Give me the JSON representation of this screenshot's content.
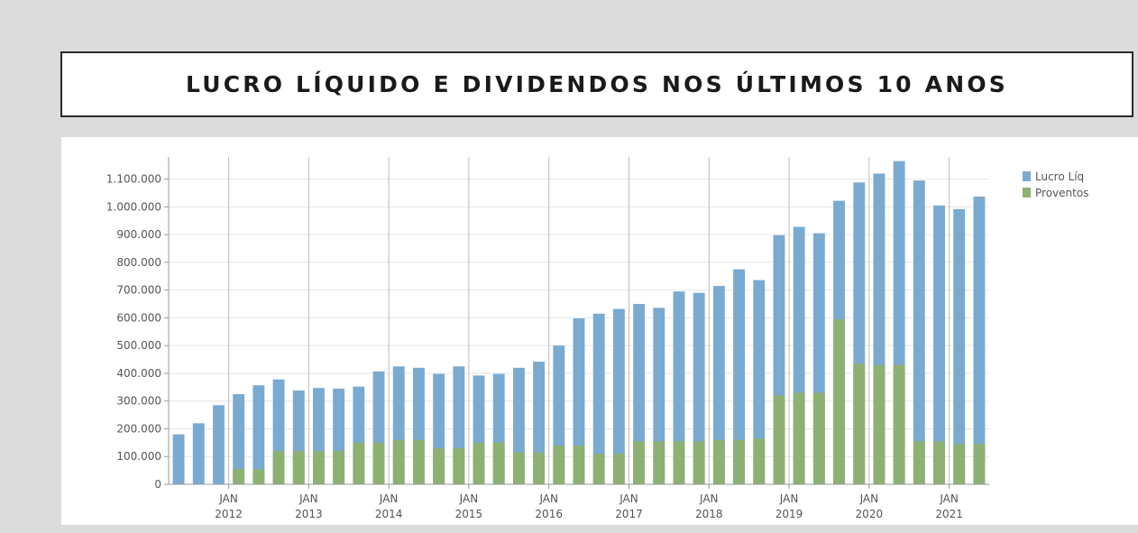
{
  "title": "LUCRO LÍQUIDO E DIVIDENDOS NOS ÚLTIMOS 10 ANOS",
  "chart_data": {
    "type": "bar",
    "xlabel": "",
    "ylabel": "",
    "ylim": [
      0,
      1180000
    ],
    "y_ticks": [
      "0",
      "100.000",
      "200.000",
      "300.000",
      "400.000",
      "500.000",
      "600.000",
      "700.000",
      "800.000",
      "900.000",
      "1.000.000",
      "1.100.000"
    ],
    "y_tick_values": [
      0,
      100000,
      200000,
      300000,
      400000,
      500000,
      600000,
      700000,
      800000,
      900000,
      1000000,
      1100000
    ],
    "x_ticks": [
      {
        "month": "JAN",
        "year": "2012"
      },
      {
        "month": "JAN",
        "year": "2013"
      },
      {
        "month": "JAN",
        "year": "2014"
      },
      {
        "month": "JAN",
        "year": "2015"
      },
      {
        "month": "JAN",
        "year": "2016"
      },
      {
        "month": "JAN",
        "year": "2017"
      },
      {
        "month": "JAN",
        "year": "2018"
      },
      {
        "month": "JAN",
        "year": "2019"
      },
      {
        "month": "JAN",
        "year": "2020"
      },
      {
        "month": "JAN",
        "year": "2021"
      }
    ],
    "grid": true,
    "legend": "right",
    "series": [
      {
        "name": "Lucro Líq",
        "color": "#7aaad0",
        "values": [
          180000,
          220000,
          285000,
          325000,
          357000,
          378000,
          338000,
          347000,
          345000,
          352000,
          407000,
          425000,
          420000,
          398000,
          425000,
          392000,
          398000,
          420000,
          442000,
          500000,
          598000,
          615000,
          632000,
          650000,
          636000,
          695000,
          690000,
          715000,
          775000,
          736000,
          898000,
          928000,
          905000,
          1022000,
          1088000,
          1120000,
          1165000,
          1095000,
          1005000,
          992000,
          1037000
        ]
      },
      {
        "name": "Proventos",
        "color": "#8db073",
        "values": [
          0,
          0,
          0,
          55000,
          55000,
          120000,
          120000,
          120000,
          120000,
          150000,
          150000,
          160000,
          160000,
          130000,
          130000,
          150000,
          150000,
          115000,
          115000,
          140000,
          140000,
          110000,
          110000,
          155000,
          155000,
          155000,
          155000,
          160000,
          160000,
          165000,
          320000,
          330000,
          330000,
          595000,
          435000,
          430000,
          430000,
          155000,
          155000,
          145000,
          145000
        ]
      }
    ]
  }
}
